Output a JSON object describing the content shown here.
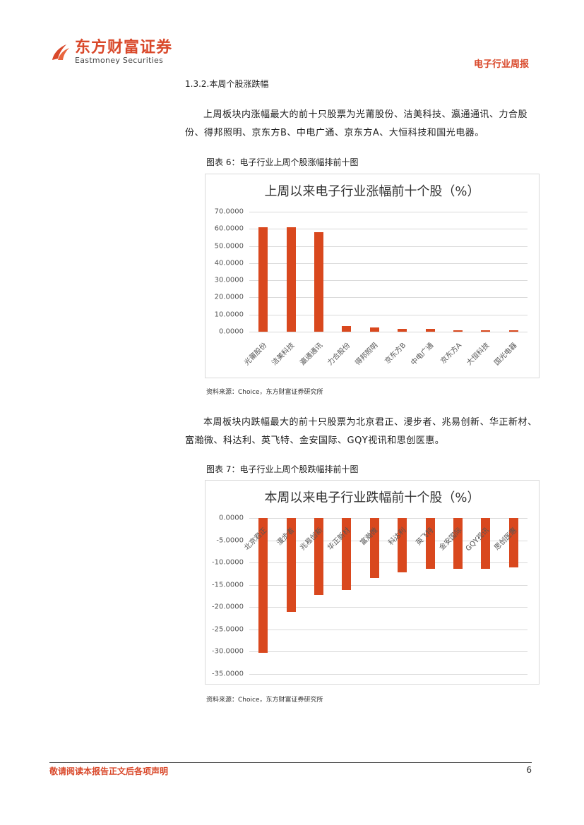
{
  "header": {
    "logo_cn": "东方财富证券",
    "logo_en": "Eastmoney Securities",
    "report_type": "电子行业周报",
    "brand_color": "#d9482a"
  },
  "section": {
    "title": "1.3.2.本周个股涨跌幅",
    "para1": "上周板块内涨幅最大的前十只股票为光莆股份、洁美科技、瀛通通讯、力合股份、得邦照明、京东方B、中电广通、京东方A、大恒科技和国光电器。",
    "fig6_caption": "图表 6：电子行业上周个股涨幅排前十图",
    "fig6_source": "资料来源：Choice，东方财富证券研究所",
    "para2": "本周板块内跌幅最大的前十只股票为北京君正、漫步者、兆易创新、华正新材、富瀚微、科达利、英飞特、金安国际、GQY视讯和思创医惠。",
    "fig7_caption": "图表 7：电子行业上周个股跌幅排前十图",
    "fig7_source": "资料来源：Choice，东方财富证券研究所"
  },
  "footer": {
    "disclaimer": "敬请阅读本报告正文后各项声明",
    "page": "6"
  },
  "chart_data": [
    {
      "type": "bar",
      "title": "上周以来电子行业涨幅前十个股（%）",
      "categories": [
        "光莆股份",
        "洁美科技",
        "瀛通通讯",
        "力合股份",
        "得邦照明",
        "京东方B",
        "中电广通",
        "京东方A",
        "大恒科技",
        "国光电器"
      ],
      "values": [
        61.0,
        61.0,
        58.0,
        3.3,
        2.5,
        1.6,
        1.5,
        0.9,
        0.9,
        0.9
      ],
      "yticks": [
        "70.0000",
        "60.0000",
        "50.0000",
        "40.0000",
        "30.0000",
        "20.0000",
        "10.0000",
        "0.0000"
      ],
      "ylim": [
        0,
        70
      ],
      "xlabel": "",
      "ylabel": "",
      "grid": true,
      "bar_color": "#d9481e"
    },
    {
      "type": "bar",
      "title": "本周以来电子行业跌幅前十个股（%）",
      "categories": [
        "北京君正",
        "漫步者",
        "兆易创新",
        "华正新材",
        "富瀚微",
        "科达利",
        "英飞特",
        "金安国际",
        "GQY视讯",
        "思创医惠"
      ],
      "values": [
        -30.3,
        -21.1,
        -17.3,
        -16.2,
        -13.5,
        -12.2,
        -11.4,
        -11.4,
        -11.4,
        -11.1
      ],
      "yticks": [
        "0.0000",
        "-5.0000",
        "-10.0000",
        "-15.0000",
        "-20.0000",
        "-25.0000",
        "-30.0000",
        "-35.0000"
      ],
      "ylim": [
        -35,
        0
      ],
      "xlabel": "",
      "ylabel": "",
      "grid": true,
      "bar_color": "#d9481e"
    }
  ]
}
